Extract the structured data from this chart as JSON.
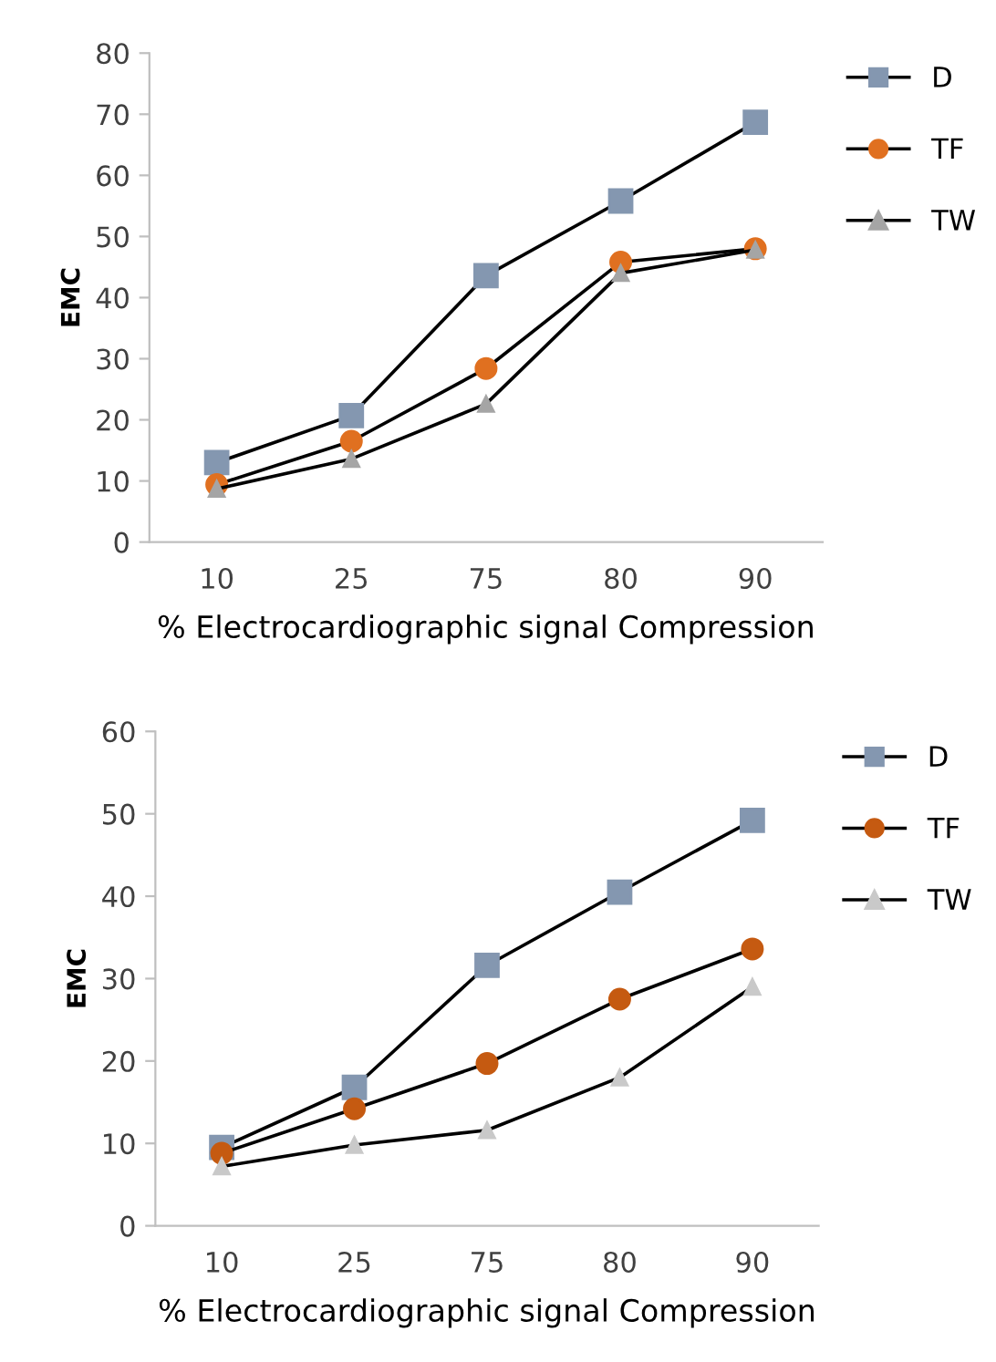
{
  "chart_data": [
    {
      "type": "line",
      "xlabel": "% Electrocardiographic signal Compression",
      "ylabel": "EMC",
      "categories": [
        "10",
        "25",
        "75",
        "80",
        "90"
      ],
      "ylim": [
        0,
        80
      ],
      "yticks": [
        0,
        10,
        20,
        30,
        40,
        50,
        60,
        70,
        80
      ],
      "grid": false,
      "legend": "right",
      "series": [
        {
          "name": "D",
          "color": "#8497b0",
          "marker": "square",
          "values": [
            13,
            20.7,
            43.6,
            55.8,
            68.7
          ]
        },
        {
          "name": "TF",
          "color": "#e07020",
          "marker": "circle",
          "values": [
            9.4,
            16.5,
            28.4,
            45.8,
            48
          ]
        },
        {
          "name": "TW",
          "color": "#a5a5a5",
          "marker": "triangle",
          "values": [
            8.7,
            13.6,
            22.6,
            44,
            47.8
          ]
        }
      ]
    },
    {
      "type": "line",
      "xlabel": "% Electrocardiographic signal Compression",
      "ylabel": "EMC",
      "categories": [
        "10",
        "25",
        "75",
        "80",
        "90"
      ],
      "ylim": [
        0,
        60
      ],
      "yticks": [
        0,
        10,
        20,
        30,
        40,
        50,
        60
      ],
      "grid": false,
      "legend": "right",
      "series": [
        {
          "name": "D",
          "color": "#8497b0",
          "marker": "square",
          "values": [
            9.5,
            16.8,
            31.6,
            40.5,
            49.2
          ]
        },
        {
          "name": "TF",
          "color": "#c55a11",
          "marker": "circle",
          "values": [
            8.8,
            14.2,
            19.7,
            27.5,
            33.6
          ]
        },
        {
          "name": "TW",
          "color": "#c9c9c9",
          "marker": "triangle",
          "values": [
            7.2,
            9.8,
            11.6,
            18,
            29
          ]
        }
      ]
    }
  ]
}
